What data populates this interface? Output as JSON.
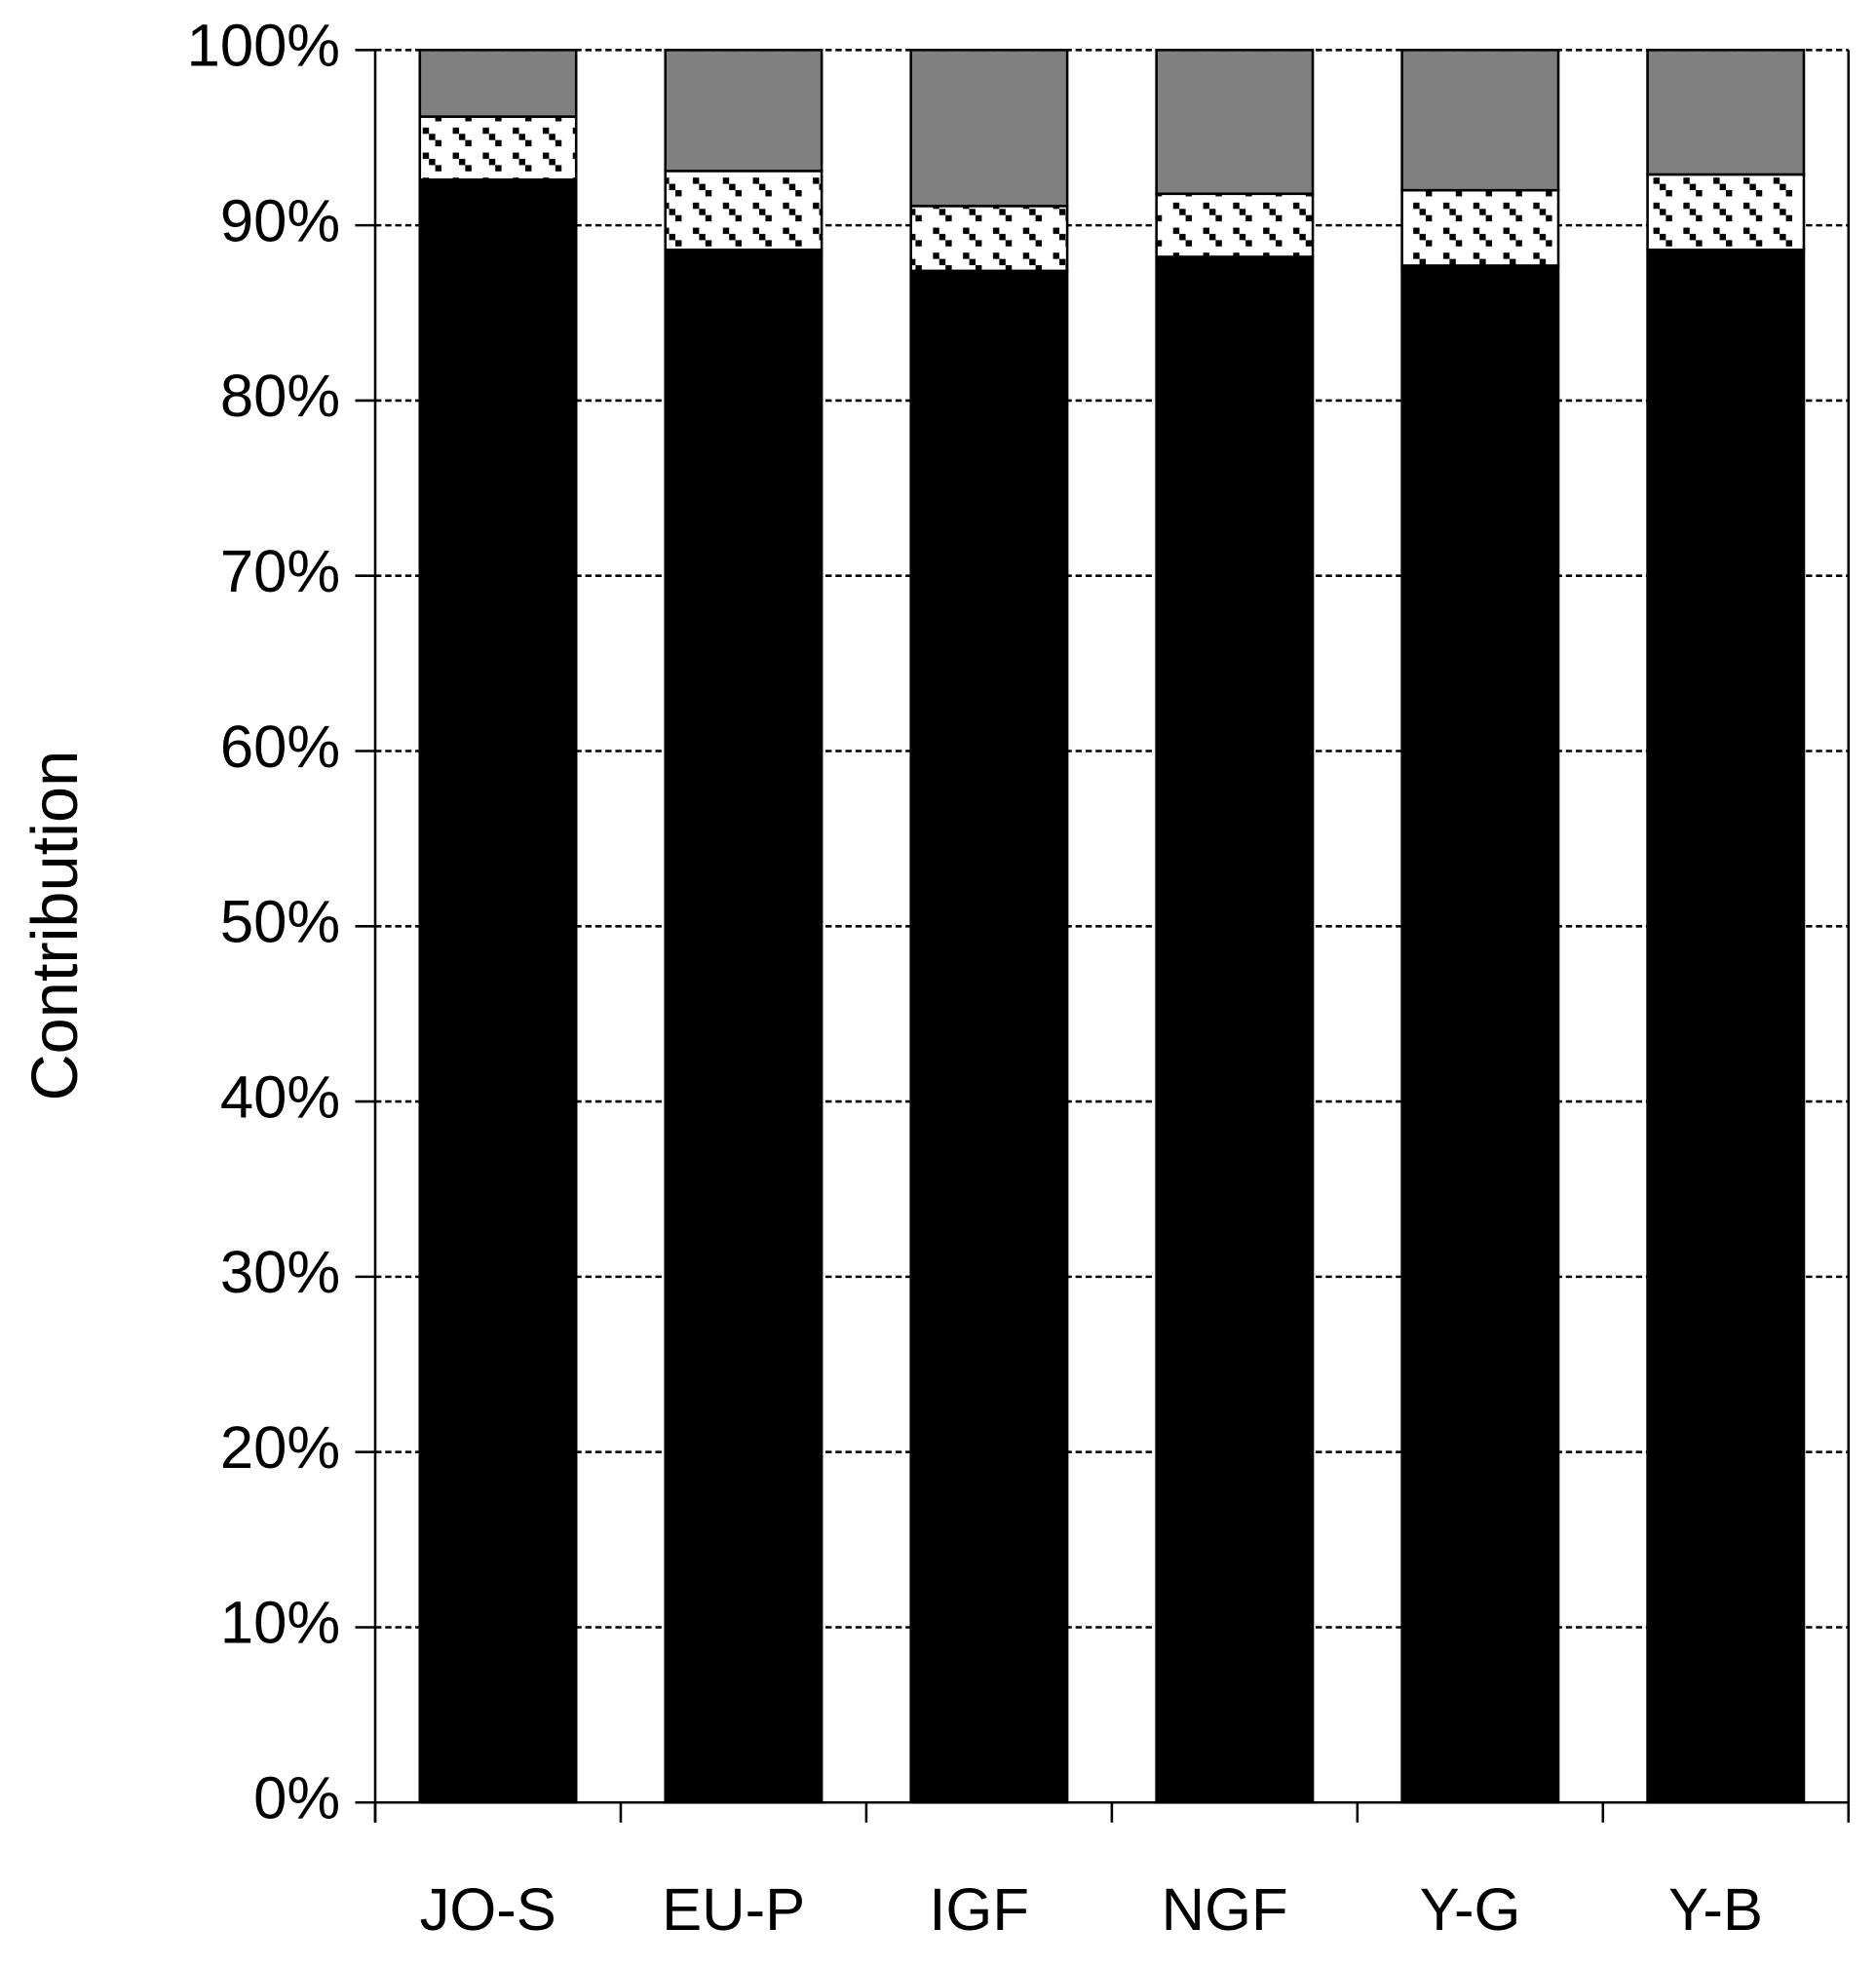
{
  "chart_data": {
    "type": "stacked-bar",
    "y_label": "Contribution",
    "categories": [
      "JO-S",
      "EU-P",
      "IGF",
      "NGF",
      "Y-G",
      "Y-B"
    ],
    "series": [
      {
        "color": "#000000",
        "values": [
          92.6,
          88.6,
          87.4,
          88.2,
          87.7,
          88.6
        ]
      },
      {
        "color": "#ffffff",
        "pattern": "hatch",
        "values": [
          3.6,
          4.5,
          3.7,
          3.6,
          4.3,
          4.3
        ]
      },
      {
        "color": "#808080",
        "values": [
          3.8,
          6.9,
          8.9,
          8.2,
          8.0,
          7.1
        ]
      }
    ],
    "ylim": [
      0,
      100
    ],
    "yticks": [
      {
        "value": 0,
        "label": "0%"
      },
      {
        "value": 10,
        "label": "10%"
      },
      {
        "value": 20,
        "label": "20%"
      },
      {
        "value": 30,
        "label": "30%"
      },
      {
        "value": 40,
        "label": "40%"
      },
      {
        "value": 50,
        "label": "50%"
      },
      {
        "value": 60,
        "label": "60%"
      },
      {
        "value": 70,
        "label": "70%"
      },
      {
        "value": 80,
        "label": "80%"
      },
      {
        "value": 90,
        "label": "90%"
      },
      {
        "value": 100,
        "label": "100%"
      }
    ],
    "grid": true
  }
}
